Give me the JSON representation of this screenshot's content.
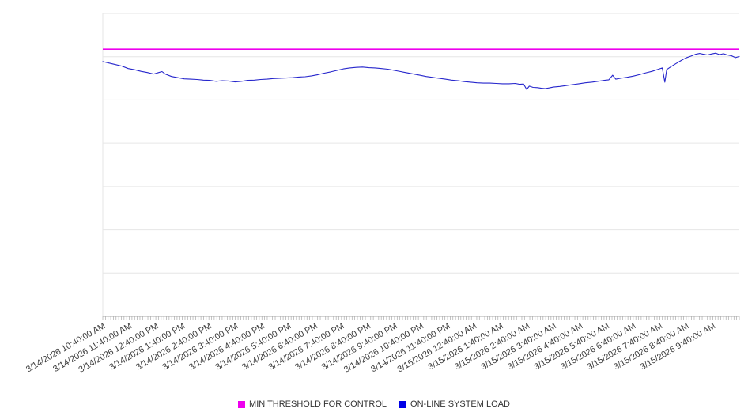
{
  "chart_data": {
    "type": "line",
    "title": "",
    "xlabel": "",
    "ylabel": "",
    "ylim": [
      0,
      100
    ],
    "y_axis_labels_visible": false,
    "grid": "horizontal",
    "gridline_count": 8,
    "minor_tick_count": 240,
    "legend_position": "bottom",
    "x_tick_labels": [
      "3/14/2026 10:40:00 AM",
      "3/14/2026 11:40:00 AM",
      "3/14/2026 12:40:00 PM",
      "3/14/2026 1:40:00 PM",
      "3/14/2026 2:40:00 PM",
      "3/14/2026 3:40:00 PM",
      "3/14/2026 4:40:00 PM",
      "3/14/2026 5:40:00 PM",
      "3/14/2026 6:40:00 PM",
      "3/14/2026 7:40:00 PM",
      "3/14/2026 8:40:00 PM",
      "3/14/2026 9:40:00 PM",
      "3/14/2026 10:40:00 PM",
      "3/14/2026 11:40:00 PM",
      "3/15/2026 12:40:00 AM",
      "3/15/2026 1:40:00 AM",
      "3/15/2026 2:40:00 AM",
      "3/15/2026 3:40:00 AM",
      "3/15/2026 4:40:00 AM",
      "3/15/2026 5:40:00 AM",
      "3/15/2026 6:40:00 AM",
      "3/15/2026 7:40:00 AM",
      "3/15/2026 8:40:00 AM",
      "3/15/2026 9:40:00 AM"
    ],
    "series": [
      {
        "name": "MIN THRESHOLD FOR CONTROL",
        "type": "threshold-line",
        "color": "#ee00ee",
        "value": 88.2
      },
      {
        "name": "ON-LINE SYSTEM LOAD",
        "type": "line",
        "color": "#2626cc",
        "points": [
          [
            0.0,
            84.1
          ],
          [
            0.01,
            83.6
          ],
          [
            0.02,
            83.1
          ],
          [
            0.03,
            82.6
          ],
          [
            0.04,
            81.8
          ],
          [
            0.05,
            81.4
          ],
          [
            0.06,
            80.9
          ],
          [
            0.07,
            80.5
          ],
          [
            0.08,
            80.0
          ],
          [
            0.088,
            80.5
          ],
          [
            0.093,
            80.8
          ],
          [
            0.098,
            80.0
          ],
          [
            0.108,
            79.2
          ],
          [
            0.118,
            78.8
          ],
          [
            0.128,
            78.4
          ],
          [
            0.138,
            78.3
          ],
          [
            0.148,
            78.2
          ],
          [
            0.158,
            78.0
          ],
          [
            0.168,
            77.9
          ],
          [
            0.178,
            77.6
          ],
          [
            0.188,
            77.8
          ],
          [
            0.198,
            77.7
          ],
          [
            0.208,
            77.4
          ],
          [
            0.218,
            77.6
          ],
          [
            0.228,
            77.9
          ],
          [
            0.238,
            78.0
          ],
          [
            0.248,
            78.2
          ],
          [
            0.258,
            78.3
          ],
          [
            0.268,
            78.5
          ],
          [
            0.278,
            78.6
          ],
          [
            0.288,
            78.7
          ],
          [
            0.298,
            78.8
          ],
          [
            0.308,
            79.0
          ],
          [
            0.318,
            79.1
          ],
          [
            0.328,
            79.4
          ],
          [
            0.338,
            79.8
          ],
          [
            0.348,
            80.3
          ],
          [
            0.358,
            80.7
          ],
          [
            0.368,
            81.2
          ],
          [
            0.378,
            81.7
          ],
          [
            0.388,
            82.0
          ],
          [
            0.398,
            82.2
          ],
          [
            0.408,
            82.3
          ],
          [
            0.418,
            82.1
          ],
          [
            0.428,
            82.0
          ],
          [
            0.438,
            81.8
          ],
          [
            0.448,
            81.6
          ],
          [
            0.458,
            81.2
          ],
          [
            0.468,
            80.8
          ],
          [
            0.478,
            80.4
          ],
          [
            0.488,
            80.0
          ],
          [
            0.498,
            79.6
          ],
          [
            0.508,
            79.2
          ],
          [
            0.518,
            78.9
          ],
          [
            0.528,
            78.6
          ],
          [
            0.538,
            78.3
          ],
          [
            0.548,
            78.0
          ],
          [
            0.558,
            77.8
          ],
          [
            0.568,
            77.5
          ],
          [
            0.578,
            77.3
          ],
          [
            0.588,
            77.1
          ],
          [
            0.598,
            77.0
          ],
          [
            0.608,
            77.0
          ],
          [
            0.618,
            76.9
          ],
          [
            0.628,
            76.8
          ],
          [
            0.638,
            76.8
          ],
          [
            0.648,
            76.9
          ],
          [
            0.655,
            76.6
          ],
          [
            0.661,
            76.7
          ],
          [
            0.666,
            74.9
          ],
          [
            0.67,
            76.0
          ],
          [
            0.676,
            75.6
          ],
          [
            0.683,
            75.5
          ],
          [
            0.689,
            75.3
          ],
          [
            0.695,
            75.2
          ],
          [
            0.701,
            75.4
          ],
          [
            0.708,
            75.7
          ],
          [
            0.718,
            75.9
          ],
          [
            0.728,
            76.2
          ],
          [
            0.738,
            76.5
          ],
          [
            0.748,
            76.8
          ],
          [
            0.758,
            77.1
          ],
          [
            0.768,
            77.3
          ],
          [
            0.778,
            77.6
          ],
          [
            0.788,
            77.9
          ],
          [
            0.795,
            78.1
          ],
          [
            0.801,
            79.6
          ],
          [
            0.806,
            78.3
          ],
          [
            0.813,
            78.6
          ],
          [
            0.823,
            78.9
          ],
          [
            0.833,
            79.3
          ],
          [
            0.843,
            79.8
          ],
          [
            0.853,
            80.4
          ],
          [
            0.863,
            80.9
          ],
          [
            0.873,
            81.6
          ],
          [
            0.879,
            82.0
          ],
          [
            0.883,
            77.3
          ],
          [
            0.886,
            81.5
          ],
          [
            0.894,
            82.6
          ],
          [
            0.901,
            83.5
          ],
          [
            0.909,
            84.5
          ],
          [
            0.916,
            85.3
          ],
          [
            0.924,
            85.9
          ],
          [
            0.931,
            86.5
          ],
          [
            0.938,
            86.8
          ],
          [
            0.944,
            86.5
          ],
          [
            0.95,
            86.3
          ],
          [
            0.956,
            86.6
          ],
          [
            0.963,
            86.9
          ],
          [
            0.969,
            86.4
          ],
          [
            0.975,
            86.7
          ],
          [
            0.981,
            86.3
          ],
          [
            0.988,
            86.0
          ],
          [
            0.994,
            85.4
          ],
          [
            1.0,
            85.8
          ]
        ]
      }
    ]
  },
  "legend": {
    "items": [
      {
        "label": "MIN THRESHOLD FOR CONTROL",
        "color": "#ee00ee"
      },
      {
        "label": "ON-LINE SYSTEM LOAD",
        "color": "#0000e6"
      }
    ]
  }
}
